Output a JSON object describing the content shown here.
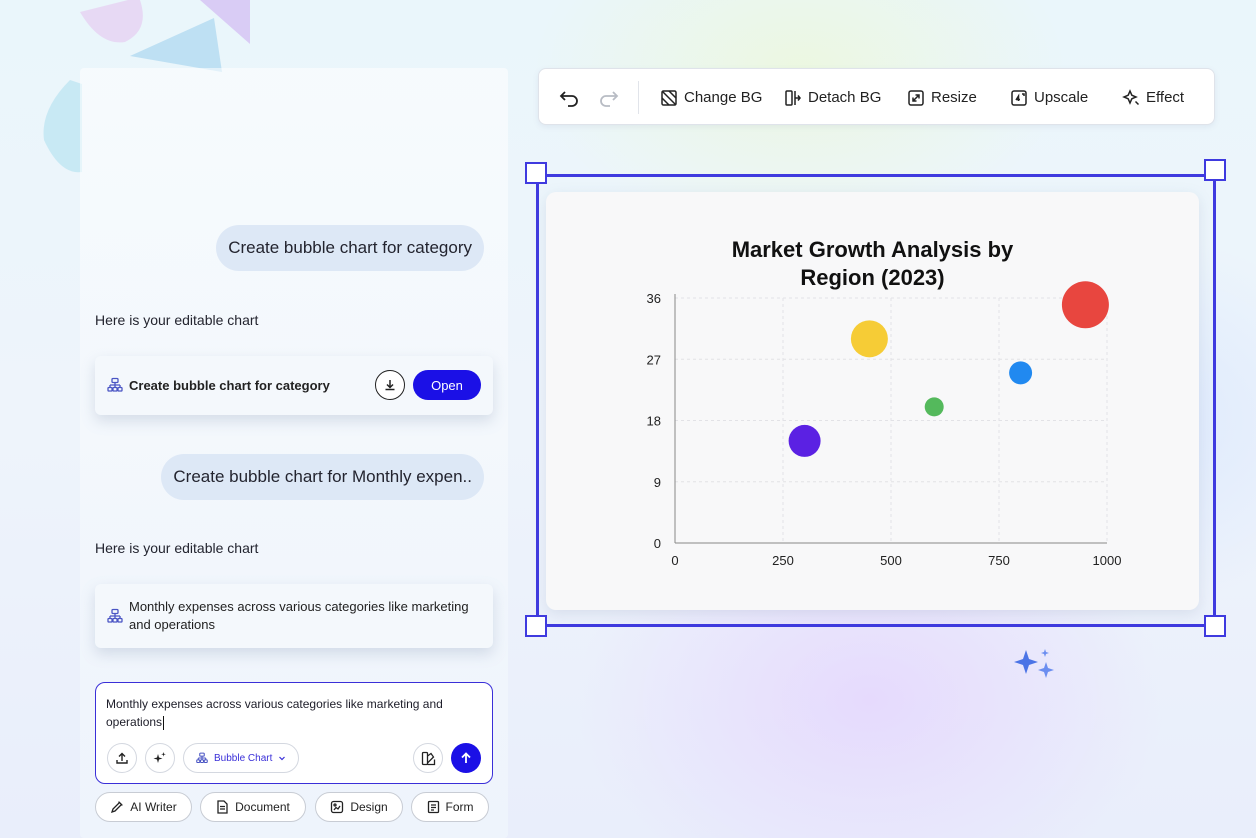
{
  "chat": {
    "messages": [
      {
        "role": "user",
        "text": "Create bubble chart for category"
      },
      {
        "role": "bot",
        "text": "Here is your editable chart"
      },
      {
        "role": "card",
        "title": "Create bubble chart for category",
        "open_label": "Open"
      },
      {
        "role": "user",
        "text": "Create bubble chart for Monthly expen.."
      },
      {
        "role": "bot",
        "text": "Here is your editable chart"
      },
      {
        "role": "card",
        "title": "Monthly expenses across various categories like marketing and operations"
      }
    ],
    "input": {
      "value": "Monthly expenses across various categories like marketing and operations",
      "chart_type_label": "Bubble Chart"
    },
    "quick_actions": [
      "AI Writer",
      "Document",
      "Design",
      "Form"
    ]
  },
  "toolbar": {
    "items": [
      "Change BG",
      "Detach BG",
      "Resize",
      "Upscale",
      "Effect"
    ]
  },
  "colors": {
    "accent": "#1b10e6",
    "selection": "#3f3adf"
  },
  "chart_data": {
    "type": "scatter",
    "title": "Market Growth Analysis by Region (2023)",
    "title_lines": [
      "Market Growth Analysis by",
      "Region (2023)"
    ],
    "xlabel": "",
    "ylabel": "",
    "xlim": [
      0,
      1000
    ],
    "ylim": [
      0,
      36
    ],
    "xticks": [
      0,
      250,
      500,
      750,
      1000
    ],
    "yticks": [
      0,
      9,
      18,
      27,
      36
    ],
    "grid": true,
    "points": [
      {
        "x": 300,
        "y": 15,
        "size": 32,
        "color": "#5b21e3"
      },
      {
        "x": 450,
        "y": 30,
        "size": 37,
        "color": "#f6cc36"
      },
      {
        "x": 600,
        "y": 20,
        "size": 19,
        "color": "#54b95c"
      },
      {
        "x": 800,
        "y": 25,
        "size": 23,
        "color": "#2189f0"
      },
      {
        "x": 950,
        "y": 35,
        "size": 47,
        "color": "#e8463f"
      }
    ]
  }
}
